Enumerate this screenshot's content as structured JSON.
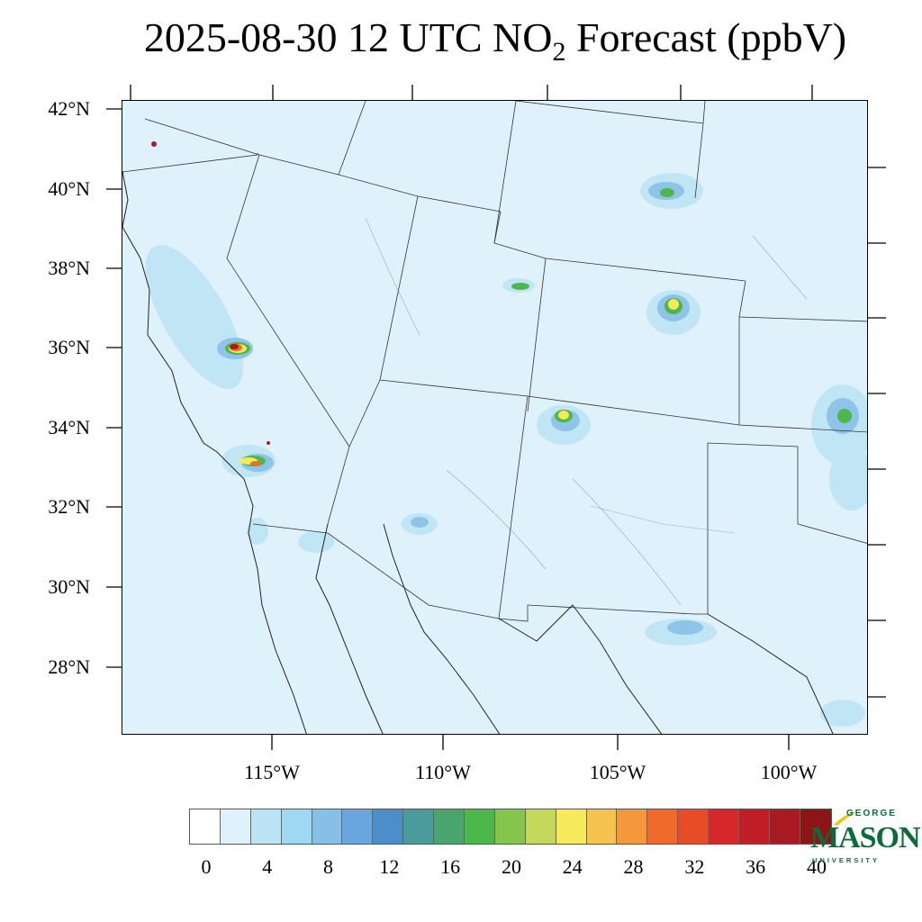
{
  "title": {
    "prefix": "2025-08-30 12 UTC NO",
    "subscript": "2",
    "suffix": " Forecast (ppbV)"
  },
  "map": {
    "lat_labels": [
      "42°N",
      "40°N",
      "38°N",
      "36°N",
      "34°N",
      "32°N",
      "30°N",
      "28°N"
    ],
    "lon_labels": [
      "115°W",
      "110°W",
      "105°W",
      "100°W"
    ],
    "background_color": "#dff2fb"
  },
  "colorbar": {
    "colors": [
      "#ffffff",
      "#dff2fb",
      "#bde4f5",
      "#9fd8f3",
      "#87c0e6",
      "#67a6de",
      "#4b8ecc",
      "#4a9c9c",
      "#48a66d",
      "#4cb84a",
      "#86c54c",
      "#c4d85a",
      "#f6e95a",
      "#f7c24e",
      "#f5973b",
      "#f06a2c",
      "#e84c27",
      "#d6272b",
      "#c11e27",
      "#a91a23",
      "#8e1515"
    ],
    "labels": [
      "0",
      "4",
      "8",
      "12",
      "16",
      "20",
      "24",
      "28",
      "32",
      "36",
      "40"
    ]
  },
  "logo": {
    "line1": "GEORGE",
    "line2": "MASON",
    "line3": "UNIVERSITY"
  }
}
